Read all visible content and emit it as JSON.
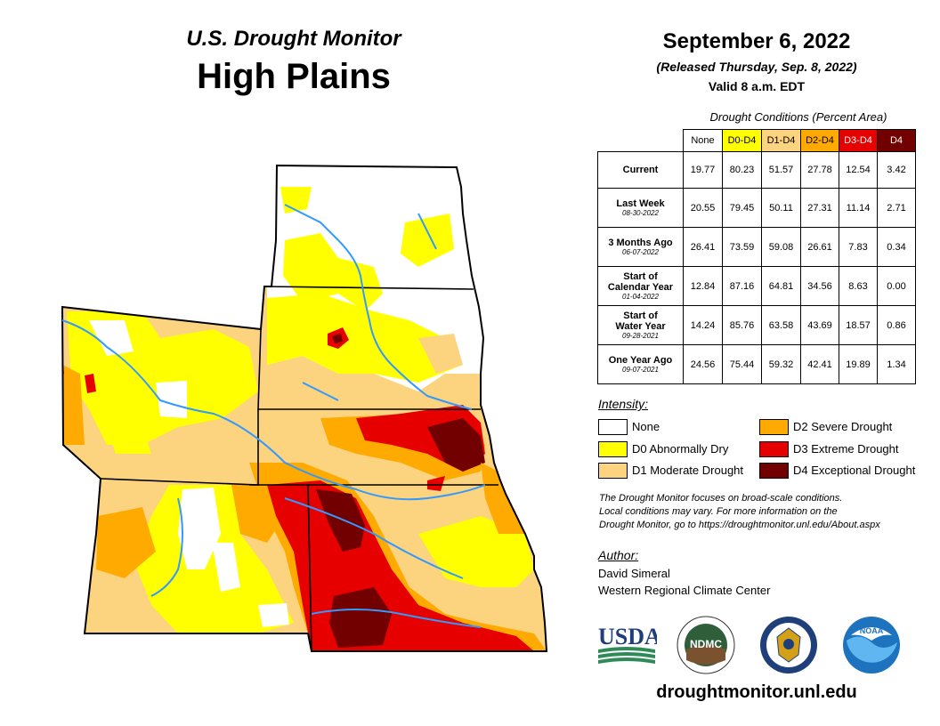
{
  "header": {
    "subtitle": "U.S. Drought Monitor",
    "region": "High Plains",
    "date": "September 6, 2022",
    "released": "(Released Thursday, Sep. 8, 2022)",
    "valid": "Valid 8 a.m. EDT"
  },
  "table": {
    "caption": "Drought Conditions (Percent Area)",
    "columns": [
      "None",
      "D0-D4",
      "D1-D4",
      "D2-D4",
      "D3-D4",
      "D4"
    ],
    "rows": [
      {
        "label": "Current",
        "date": "",
        "values": [
          "19.77",
          "80.23",
          "51.57",
          "27.78",
          "12.54",
          "3.42"
        ]
      },
      {
        "label": "Last Week",
        "date": "08-30-2022",
        "values": [
          "20.55",
          "79.45",
          "50.11",
          "27.31",
          "11.14",
          "2.71"
        ]
      },
      {
        "label": "3 Months Ago",
        "date": "06-07-2022",
        "values": [
          "26.41",
          "73.59",
          "59.08",
          "26.61",
          "7.83",
          "0.34"
        ]
      },
      {
        "label1": "Start of",
        "label2": "Calendar Year",
        "date": "01-04-2022",
        "values": [
          "12.84",
          "87.16",
          "64.81",
          "34.56",
          "8.63",
          "0.00"
        ]
      },
      {
        "label1": "Start of",
        "label2": "Water Year",
        "date": "09-28-2021",
        "values": [
          "14.24",
          "85.76",
          "63.58",
          "43.69",
          "18.57",
          "0.86"
        ]
      },
      {
        "label": "One Year Ago",
        "date": "09-07-2021",
        "values": [
          "24.56",
          "75.44",
          "59.32",
          "42.41",
          "19.89",
          "1.34"
        ]
      }
    ]
  },
  "legend": {
    "title": "Intensity:",
    "items": [
      {
        "label": "None",
        "color": "#ffffff"
      },
      {
        "label": "D0 Abnormally Dry",
        "color": "#ffff00"
      },
      {
        "label": "D1 Moderate Drought",
        "color": "#fcd37f"
      },
      {
        "label": "D2 Severe Drought",
        "color": "#ffaa00"
      },
      {
        "label": "D3 Extreme Drought",
        "color": "#e60000"
      },
      {
        "label": "D4 Exceptional Drought",
        "color": "#730000"
      }
    ]
  },
  "note": {
    "line1": "The Drought Monitor focuses on broad-scale conditions.",
    "line2": "Local conditions may vary. For more information on the",
    "line3": "Drought Monitor, go to https://droughtmonitor.unl.edu/About.aspx"
  },
  "author": {
    "title": "Author:",
    "name": "David Simeral",
    "org": "Western Regional Climate Center"
  },
  "logos": {
    "usda": "USDA",
    "ndmc": "NDMC",
    "noaa": "NOAA"
  },
  "footer_url": "droughtmonitor.unl.edu",
  "colors": {
    "none": "#ffffff",
    "d0": "#ffff00",
    "d1": "#fcd37f",
    "d2": "#ffaa00",
    "d3": "#e60000",
    "d4": "#730000",
    "rivers": "#3399ff"
  }
}
